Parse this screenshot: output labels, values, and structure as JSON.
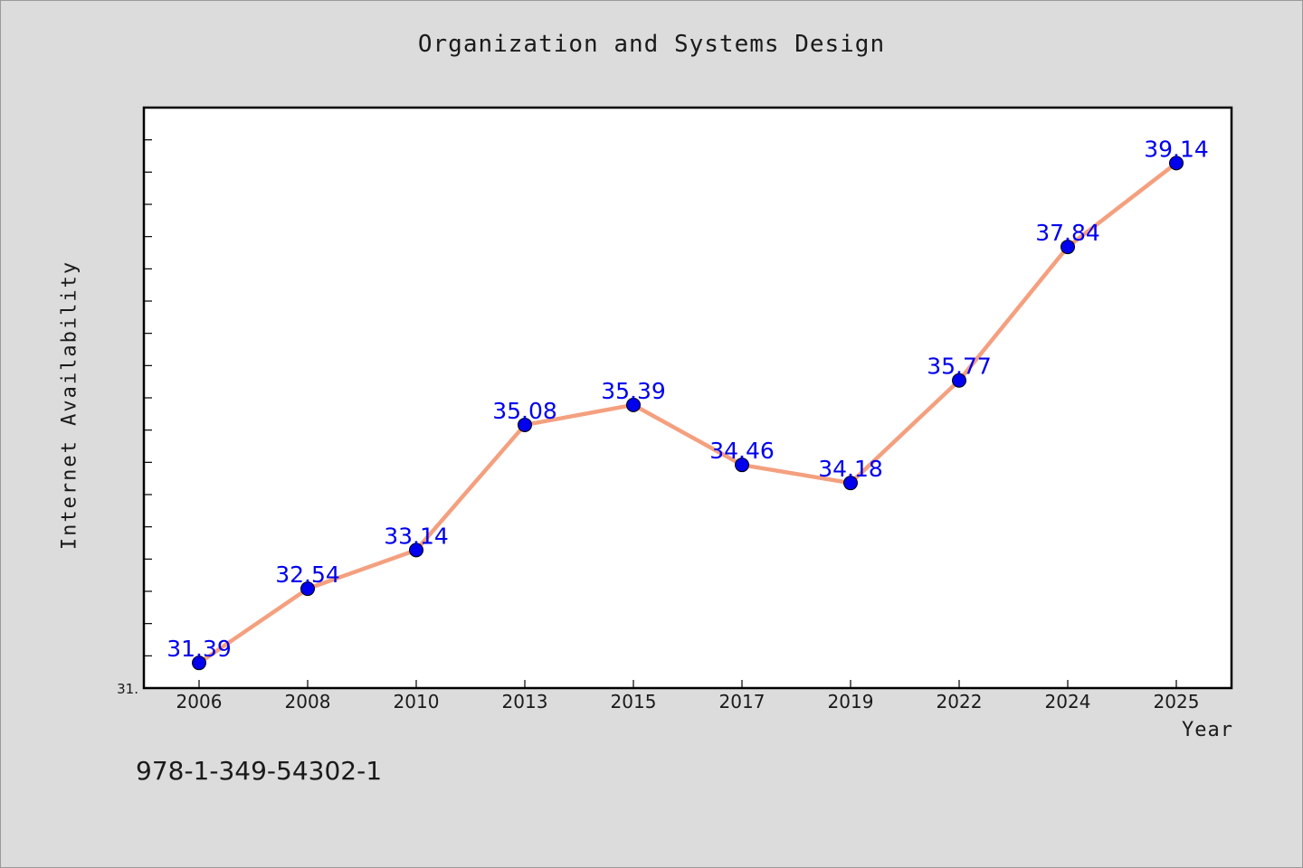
{
  "chart_data": {
    "type": "line",
    "title": "Organization and Systems Design",
    "xlabel": "Year",
    "ylabel": "Internet Availability",
    "categories": [
      "2006",
      "2008",
      "2010",
      "2013",
      "2015",
      "2017",
      "2019",
      "2022",
      "2024",
      "2025"
    ],
    "series": [
      {
        "values": [
          31.39,
          32.54,
          33.14,
          35.08,
          35.39,
          34.46,
          34.18,
          35.77,
          37.84,
          39.14
        ]
      }
    ],
    "data_labels": [
      "31.39",
      "32.54",
      "33.14",
      "35.08",
      "35.39",
      "34.46",
      "34.18",
      "35.77",
      "37.84",
      "39.14"
    ],
    "y_tick_label": "31.",
    "ylim": [
      31.0,
      40.0
    ],
    "y_minor_tick_step": 0.5,
    "grid": false,
    "legend": "none",
    "line_color": "#f4a07f",
    "marker_color": "#0000ee",
    "label_color": "#0000ee"
  },
  "footer": {
    "isbn": "978-1-349-54302-1"
  }
}
